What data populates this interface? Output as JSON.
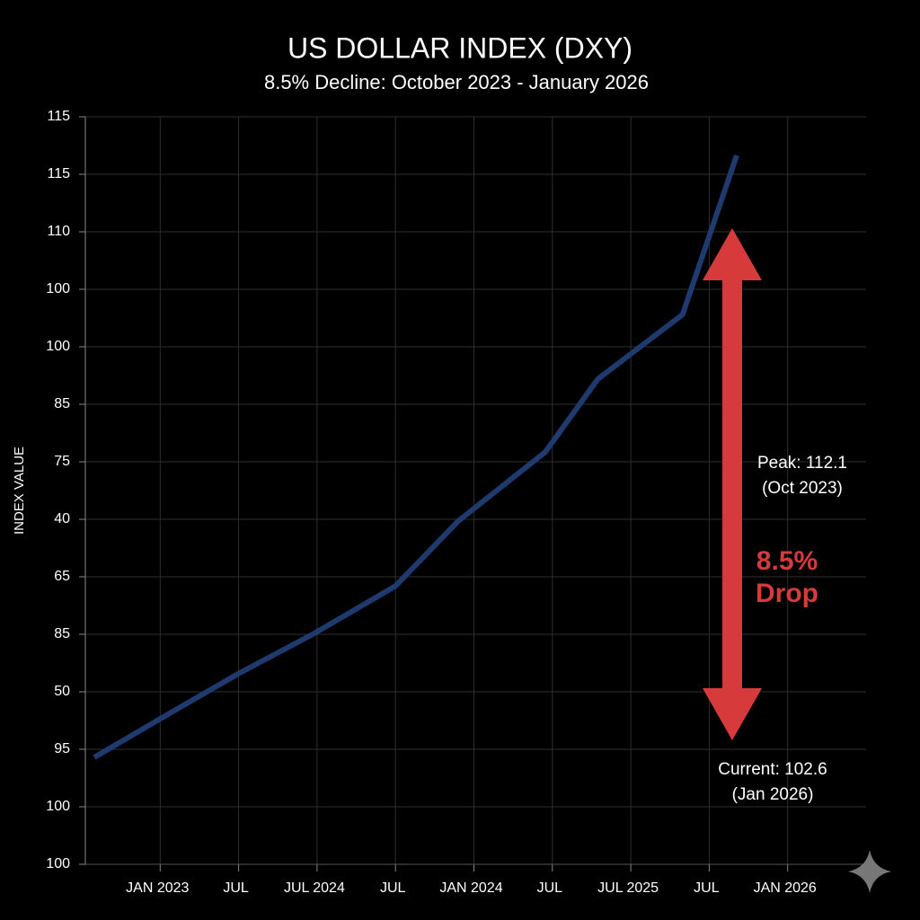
{
  "chart_data": {
    "type": "line",
    "title": "US DOLLAR INDEX (DXY)",
    "subtitle": "8.5% Decline: October 2023 - January 2026",
    "y_label": "INDEX VALUE",
    "x": [
      0.16,
      1.0,
      1.99,
      2.97,
      4.0,
      4.8,
      5.91,
      6.58,
      7.66,
      8.35
    ],
    "series": [
      {
        "name": "DXY",
        "color": "#1f3a6e",
        "values": [
          1.86,
          2.53,
          3.31,
          4.02,
          4.84,
          5.97,
          7.17,
          8.44,
          9.56,
          12.33
        ]
      }
    ],
    "xlim": [
      0,
      10
    ],
    "xticks": [
      {
        "value": 1,
        "label": "JAN 2023"
      },
      {
        "value": 2,
        "label": "JUL"
      },
      {
        "value": 3,
        "label": "JUL 2024"
      },
      {
        "value": 4,
        "label": "JUL"
      },
      {
        "value": 5,
        "label": "JAN 2024"
      },
      {
        "value": 6,
        "label": "JUL"
      },
      {
        "value": 7,
        "label": "JUL 2025"
      },
      {
        "value": 8,
        "label": "JUL"
      },
      {
        "value": 9,
        "label": "JAN 2026"
      }
    ],
    "ylim": [
      0,
      13
    ],
    "yticks": [
      {
        "value": 0,
        "label": "100"
      },
      {
        "value": 1,
        "label": "100"
      },
      {
        "value": 2,
        "label": "95"
      },
      {
        "value": 3,
        "label": "50"
      },
      {
        "value": 4,
        "label": "85"
      },
      {
        "value": 5,
        "label": "65"
      },
      {
        "value": 6,
        "label": "40"
      },
      {
        "value": 7,
        "label": "75"
      },
      {
        "value": 8,
        "label": "85"
      },
      {
        "value": 9,
        "label": "100"
      },
      {
        "value": 10,
        "label": "100"
      },
      {
        "value": 11,
        "label": "110"
      },
      {
        "value": 12,
        "label": "115"
      },
      {
        "value": 13,
        "label": "115"
      }
    ],
    "grid": true,
    "annotations": [
      "Peak: 112.1",
      "(Oct 2023)",
      "8.5%",
      "Drop",
      "Current: 102.6",
      "(Jan 2026)"
    ]
  }
}
